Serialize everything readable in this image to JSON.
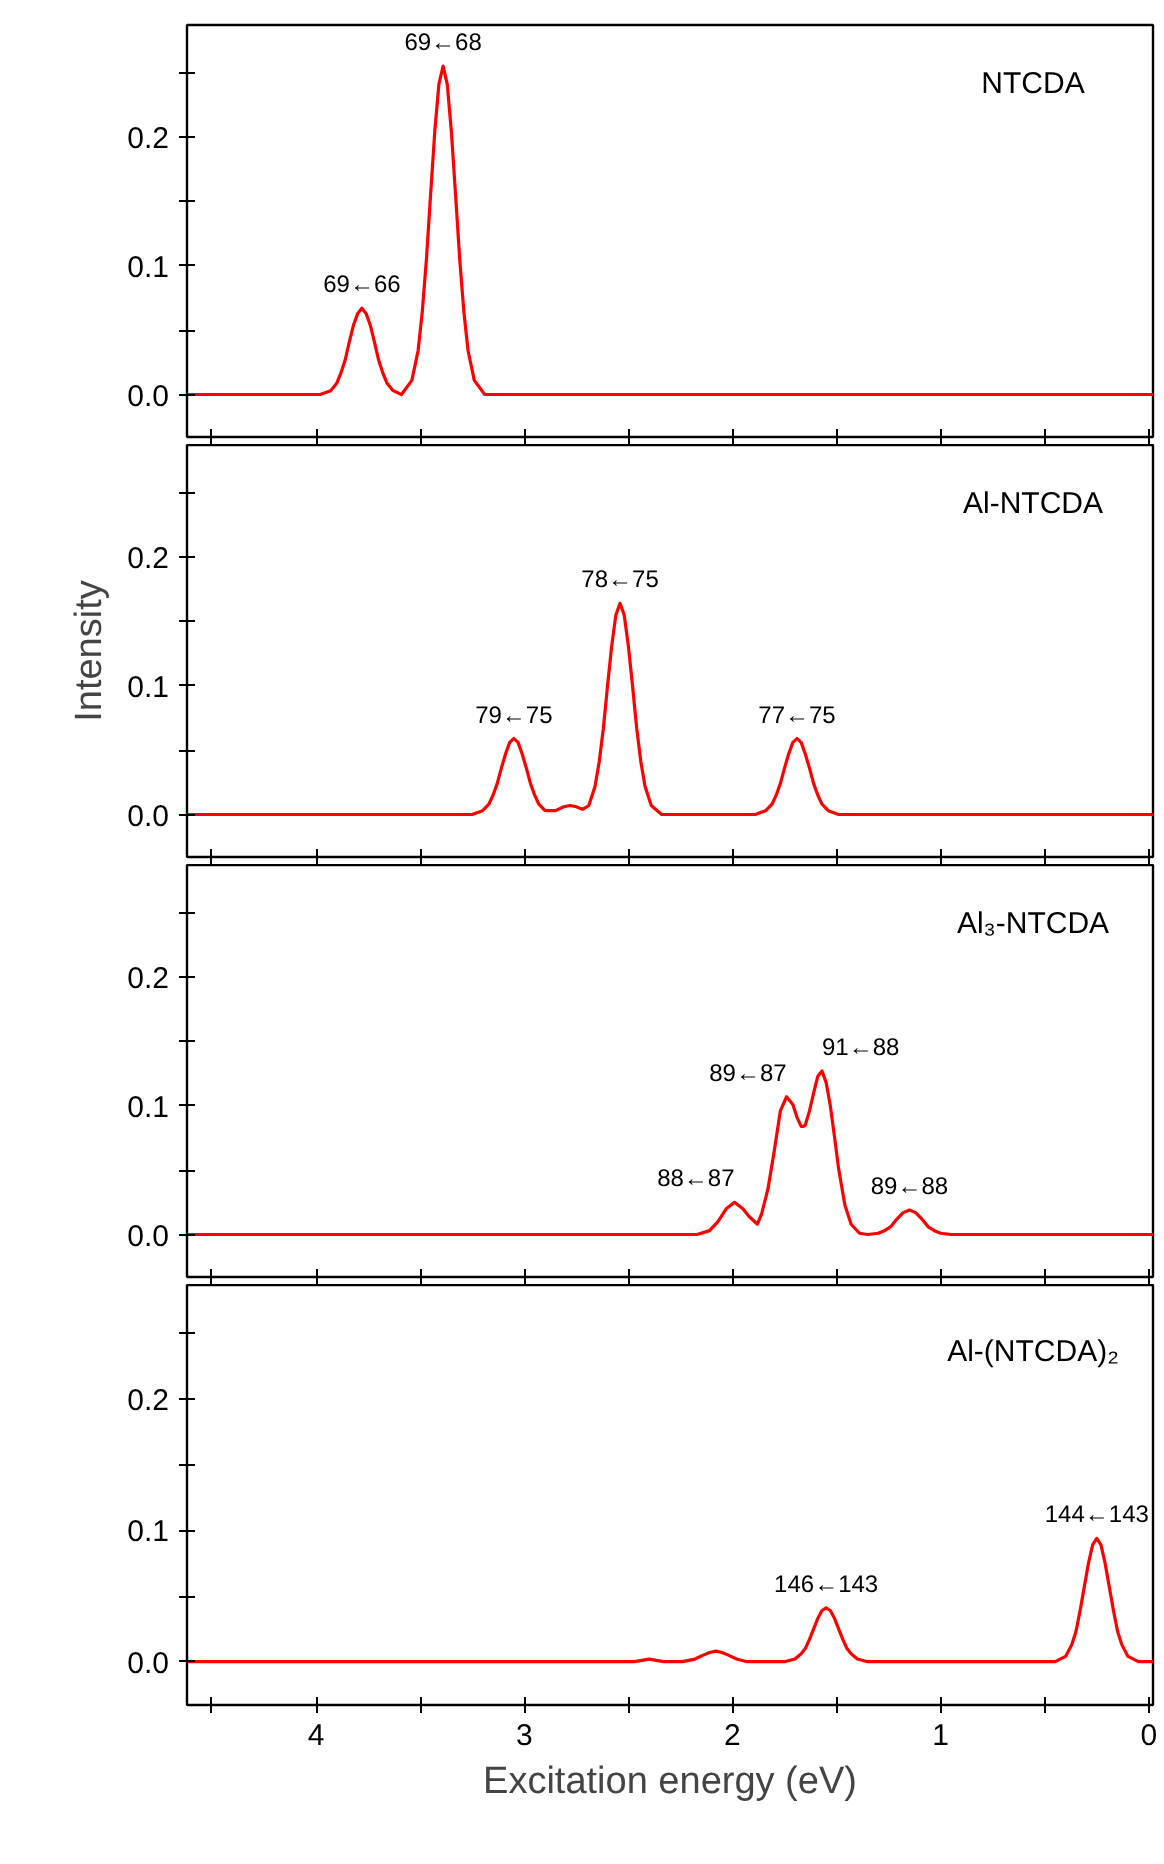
{
  "chart_data": [
    {
      "type": "line",
      "title": "NTCDA",
      "tick_labels": "y",
      "xlim": [
        4.62,
        -0.02
      ],
      "ylim": [
        -0.033,
        0.287
      ],
      "xticks": [
        4,
        3,
        2,
        1,
        0,
        {
          "value": 4.5,
          "label": null
        },
        {
          "value": 3.5,
          "label": null
        },
        {
          "value": 2.5,
          "label": null
        },
        {
          "value": 1.5,
          "label": null
        },
        {
          "value": 0.5,
          "label": null
        }
      ],
      "yticks": [
        {
          "value": 0,
          "label": "0.0"
        },
        {
          "value": 0.1,
          "label": "0.1"
        },
        {
          "value": 0.2,
          "label": "0.2"
        },
        {
          "value": 0.05,
          "label": null
        },
        {
          "value": 0.15,
          "label": null
        },
        {
          "value": 0.25,
          "label": null
        }
      ],
      "annotations": [
        {
          "text": "69←68",
          "x": 3.39,
          "y": 0.255
        },
        {
          "text": "69←66",
          "x": 3.78,
          "y": 0.067
        }
      ],
      "series": [
        {
          "color": "#ff0000",
          "x": [
            -0.02,
            3.19,
            3.24,
            3.27,
            3.29,
            3.31,
            3.33,
            3.35,
            3.37,
            3.39,
            3.41,
            3.43,
            3.45,
            3.47,
            3.49,
            3.51,
            3.54,
            3.59,
            3.63,
            3.66,
            3.68,
            3.7,
            3.72,
            3.74,
            3.76,
            3.78,
            3.8,
            3.82,
            3.84,
            3.86,
            3.88,
            3.9,
            3.93,
            3.98,
            4.62
          ],
          "values": [
            0,
            0,
            0.011,
            0.034,
            0.064,
            0.105,
            0.155,
            0.204,
            0.241,
            0.255,
            0.241,
            0.204,
            0.155,
            0.105,
            0.064,
            0.034,
            0.011,
            0,
            0.003,
            0.009,
            0.017,
            0.027,
            0.041,
            0.054,
            0.063,
            0.067,
            0.063,
            0.054,
            0.041,
            0.027,
            0.017,
            0.009,
            0.003,
            0,
            0
          ]
        }
      ]
    },
    {
      "type": "line",
      "title": "Al-NTCDA",
      "ylabel": "Intensity",
      "tick_labels": "y",
      "xlim": [
        4.62,
        -0.02
      ],
      "ylim": [
        -0.033,
        0.287
      ],
      "xticks": [
        4,
        3,
        2,
        1,
        0,
        {
          "value": 4.5,
          "label": null
        },
        {
          "value": 3.5,
          "label": null
        },
        {
          "value": 2.5,
          "label": null
        },
        {
          "value": 1.5,
          "label": null
        },
        {
          "value": 0.5,
          "label": null
        }
      ],
      "yticks": [
        {
          "value": 0,
          "label": "0.0"
        },
        {
          "value": 0.1,
          "label": "0.1"
        },
        {
          "value": 0.2,
          "label": "0.2"
        },
        {
          "value": 0.05,
          "label": null
        },
        {
          "value": 0.15,
          "label": null
        },
        {
          "value": 0.25,
          "label": null
        }
      ],
      "annotations": [
        {
          "text": "79←75",
          "x": 3.05,
          "y": 0.059
        },
        {
          "text": "78←75",
          "x": 2.54,
          "y": 0.164
        },
        {
          "text": "77←75",
          "x": 1.69,
          "y": 0.059
        }
      ],
      "series": [
        {
          "color": "#ff0000",
          "x": [
            -0.02,
            1.49,
            1.54,
            1.57,
            1.59,
            1.61,
            1.63,
            1.65,
            1.67,
            1.69,
            1.71,
            1.73,
            1.75,
            1.77,
            1.79,
            1.81,
            1.84,
            1.89,
            2.34,
            2.39,
            2.42,
            2.44,
            2.46,
            2.48,
            2.5,
            2.52,
            2.54,
            2.56,
            2.58,
            2.6,
            2.62,
            2.64,
            2.66,
            2.69,
            2.72,
            2.75,
            2.78,
            2.81,
            2.85,
            2.9,
            2.93,
            2.95,
            2.97,
            2.99,
            3.01,
            3.03,
            3.05,
            3.07,
            3.09,
            3.11,
            3.13,
            3.15,
            3.17,
            3.2,
            3.25,
            4.62
          ],
          "values": [
            0,
            0,
            0.003,
            0.008,
            0.015,
            0.024,
            0.036,
            0.047,
            0.056,
            0.059,
            0.056,
            0.047,
            0.036,
            0.024,
            0.015,
            0.008,
            0.003,
            0,
            0,
            0.007,
            0.022,
            0.041,
            0.067,
            0.1,
            0.131,
            0.155,
            0.164,
            0.155,
            0.131,
            0.1,
            0.067,
            0.041,
            0.022,
            0.007,
            0.004,
            0.006,
            0.007,
            0.006,
            0.003,
            0.003,
            0.008,
            0.015,
            0.024,
            0.036,
            0.047,
            0.056,
            0.059,
            0.056,
            0.047,
            0.036,
            0.024,
            0.015,
            0.008,
            0.003,
            0,
            0
          ]
        }
      ]
    },
    {
      "type": "line",
      "title": "Al₃-NTCDA",
      "tick_labels": "y",
      "xlim": [
        4.62,
        -0.02
      ],
      "ylim": [
        -0.033,
        0.287
      ],
      "xticks": [
        4,
        3,
        2,
        1,
        0,
        {
          "value": 4.5,
          "label": null
        },
        {
          "value": 3.5,
          "label": null
        },
        {
          "value": 2.5,
          "label": null
        },
        {
          "value": 1.5,
          "label": null
        },
        {
          "value": 0.5,
          "label": null
        }
      ],
      "yticks": [
        {
          "value": 0,
          "label": "0.0"
        },
        {
          "value": 0.1,
          "label": "0.1"
        },
        {
          "value": 0.2,
          "label": "0.2"
        },
        {
          "value": 0.05,
          "label": null
        },
        {
          "value": 0.15,
          "label": null
        },
        {
          "value": 0.25,
          "label": null
        }
      ],
      "annotations": [
        {
          "text": "88←87",
          "x": 1.99,
          "y": 0.025
        },
        {
          "text": "89←87",
          "x": 1.74,
          "y": 0.107
        },
        {
          "text": "91←88",
          "x": 1.57,
          "y": 0.127
        },
        {
          "text": "89←88",
          "x": 1.15,
          "y": 0.019
        }
      ],
      "series": [
        {
          "color": "#ff0000",
          "x": [
            -0.02,
            0.95,
            1.0,
            1.03,
            1.06,
            1.09,
            1.12,
            1.15,
            1.18,
            1.21,
            1.24,
            1.27,
            1.3,
            1.35,
            1.39,
            1.43,
            1.46,
            1.49,
            1.51,
            1.53,
            1.55,
            1.57,
            1.59,
            1.61,
            1.63,
            1.65,
            1.66,
            1.67,
            1.69,
            1.71,
            1.74,
            1.77,
            1.8,
            1.83,
            1.86,
            1.88,
            1.92,
            1.95,
            1.99,
            2.03,
            2.07,
            2.11,
            2.17,
            4.62
          ],
          "values": [
            0,
            0,
            0.001,
            0.003,
            0.006,
            0.012,
            0.017,
            0.019,
            0.017,
            0.012,
            0.006,
            0.003,
            0.001,
            0,
            0.001,
            0.008,
            0.023,
            0.051,
            0.076,
            0.1,
            0.118,
            0.127,
            0.123,
            0.11,
            0.096,
            0.085,
            0.084,
            0.084,
            0.091,
            0.101,
            0.107,
            0.096,
            0.064,
            0.035,
            0.016,
            0.008,
            0.014,
            0.02,
            0.025,
            0.02,
            0.01,
            0.003,
            0,
            0
          ]
        }
      ]
    },
    {
      "type": "line",
      "title": "Al-(NTCDA)₂",
      "xlabel": "Excitation energy (eV)",
      "xlim": [
        4.62,
        -0.02
      ],
      "ylim": [
        -0.033,
        0.287
      ],
      "xticks": [
        4,
        3,
        2,
        1,
        0,
        {
          "value": 4.5,
          "label": null
        },
        {
          "value": 3.5,
          "label": null
        },
        {
          "value": 2.5,
          "label": null
        },
        {
          "value": 1.5,
          "label": null
        },
        {
          "value": 0.5,
          "label": null
        }
      ],
      "yticks": [
        {
          "value": 0,
          "label": "0.0"
        },
        {
          "value": 0.1,
          "label": "0.1"
        },
        {
          "value": 0.2,
          "label": "0.2"
        },
        {
          "value": 0.05,
          "label": null
        },
        {
          "value": 0.15,
          "label": null
        },
        {
          "value": 0.25,
          "label": null
        }
      ],
      "annotations": [
        {
          "text": "146←143",
          "x": 1.55,
          "y": 0.041
        },
        {
          "text": "144←143",
          "x": 0.25,
          "y": 0.094
        }
      ],
      "series": [
        {
          "color": "#ff0000",
          "x": [
            -0.02,
            0.05,
            0.1,
            0.13,
            0.15,
            0.17,
            0.19,
            0.21,
            0.23,
            0.25,
            0.27,
            0.29,
            0.31,
            0.33,
            0.35,
            0.37,
            0.4,
            0.45,
            1.35,
            1.4,
            1.43,
            1.45,
            1.47,
            1.49,
            1.51,
            1.53,
            1.55,
            1.57,
            1.59,
            1.61,
            1.63,
            1.65,
            1.67,
            1.7,
            1.75,
            1.93,
            1.98,
            2.02,
            2.05,
            2.08,
            2.11,
            2.14,
            2.18,
            2.24,
            2.33,
            2.4,
            2.47,
            4.62
          ],
          "values": [
            0,
            0,
            0.004,
            0.013,
            0.023,
            0.039,
            0.057,
            0.075,
            0.089,
            0.094,
            0.089,
            0.075,
            0.057,
            0.039,
            0.023,
            0.013,
            0.004,
            0,
            0,
            0.002,
            0.006,
            0.01,
            0.017,
            0.025,
            0.033,
            0.039,
            0.041,
            0.039,
            0.033,
            0.025,
            0.017,
            0.01,
            0.006,
            0.002,
            0,
            0,
            0.002,
            0.005,
            0.007,
            0.008,
            0.007,
            0.005,
            0.002,
            0,
            0,
            0.002,
            0,
            0
          ]
        }
      ]
    }
  ]
}
